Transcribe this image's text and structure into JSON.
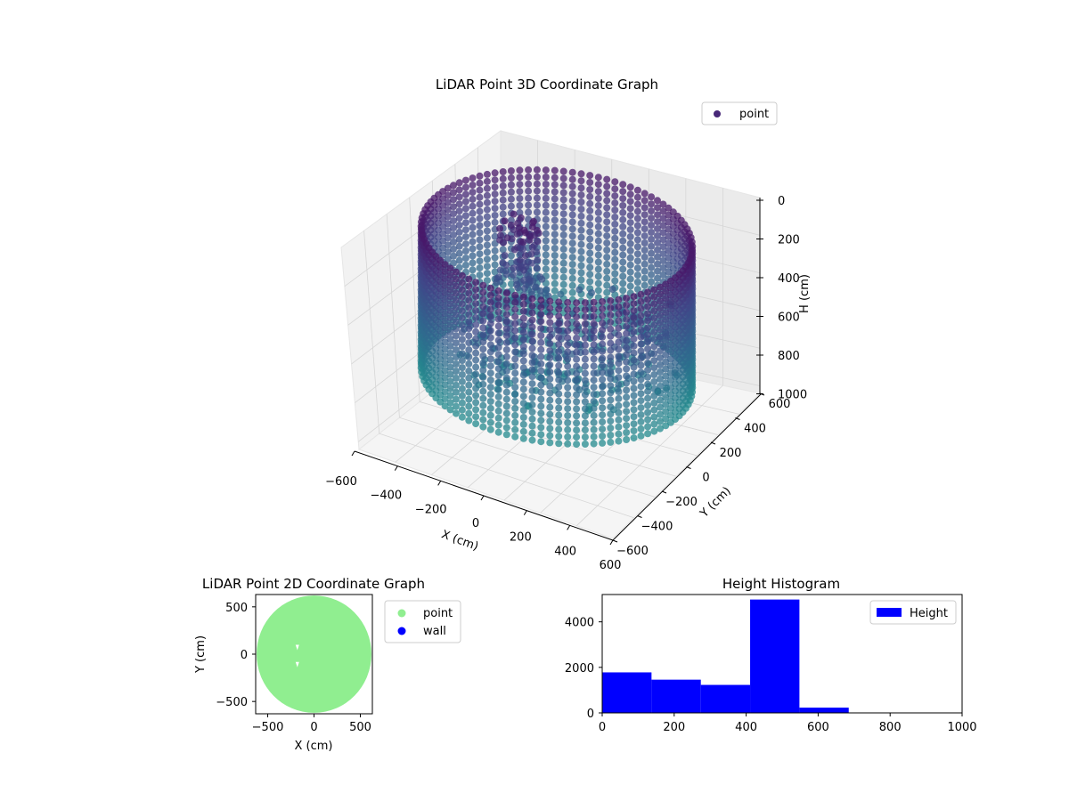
{
  "chart_data": [
    {
      "type": "scatter3d",
      "title": "LiDAR Point 3D Coordinate Graph",
      "xlabel": "X (cm)",
      "ylabel": "Y (cm)",
      "zlabel": "H (cm)",
      "xlim": [
        -600,
        600
      ],
      "ylim": [
        -600,
        600
      ],
      "zlim": [
        1000,
        0
      ],
      "x_ticks": [
        "−600",
        "−400",
        "−200",
        "0",
        "200",
        "400",
        "600"
      ],
      "y_ticks": [
        "−600",
        "−400",
        "−200",
        "0",
        "200",
        "400",
        "600"
      ],
      "z_ticks": [
        "0",
        "200",
        "400",
        "600",
        "800",
        "1000"
      ],
      "legend": [
        {
          "label": "point",
          "color": "#482878"
        }
      ],
      "legend_position": "top-right",
      "grid": true,
      "colormap": "viridis",
      "wall": {
        "radius_cm": 560,
        "height_top_cm": 0,
        "height_bottom_cm": 700
      },
      "cluster": {
        "x_range": [
          -250,
          -100
        ],
        "y_range": [
          -100,
          100
        ],
        "h_range": [
          0,
          350
        ]
      }
    },
    {
      "type": "scatter",
      "title": "LiDAR Point 2D Coordinate Graph",
      "xlabel": "X (cm)",
      "ylabel": "Y (cm)",
      "xlim": [
        -630,
        630
      ],
      "ylim": [
        -630,
        630
      ],
      "x_ticks": [
        "−500",
        "0",
        "500"
      ],
      "y_ticks": [
        "−500",
        "0",
        "500"
      ],
      "series": [
        {
          "name": "point",
          "color": "#90ee90",
          "shape": "disc",
          "center": [
            0,
            0
          ],
          "radius": 620
        },
        {
          "name": "wall",
          "color": "#0000ff",
          "points": []
        }
      ],
      "gaps": [
        [
          -180,
          70
        ],
        [
          -180,
          -110
        ]
      ],
      "legend": [
        {
          "label": "point",
          "color": "#90ee90"
        },
        {
          "label": "wall",
          "color": "#0000ff"
        }
      ],
      "legend_position": "outside-right"
    },
    {
      "type": "bar",
      "title": "Height Histogram",
      "xlim": [
        0,
        1000
      ],
      "ylim": [
        0,
        5200
      ],
      "x_ticks": [
        "0",
        "200",
        "400",
        "600",
        "800",
        "1000"
      ],
      "y_ticks": [
        "0",
        "2000",
        "4000"
      ],
      "bins": [
        {
          "start": 0,
          "end": 137,
          "count": 1780
        },
        {
          "start": 137,
          "end": 274,
          "count": 1460
        },
        {
          "start": 274,
          "end": 411,
          "count": 1230
        },
        {
          "start": 411,
          "end": 548,
          "count": 4980
        },
        {
          "start": 548,
          "end": 685,
          "count": 230
        }
      ],
      "color": "#0000ff",
      "legend": [
        {
          "label": "Height",
          "color": "#0000ff"
        }
      ],
      "legend_position": "top-right"
    }
  ]
}
